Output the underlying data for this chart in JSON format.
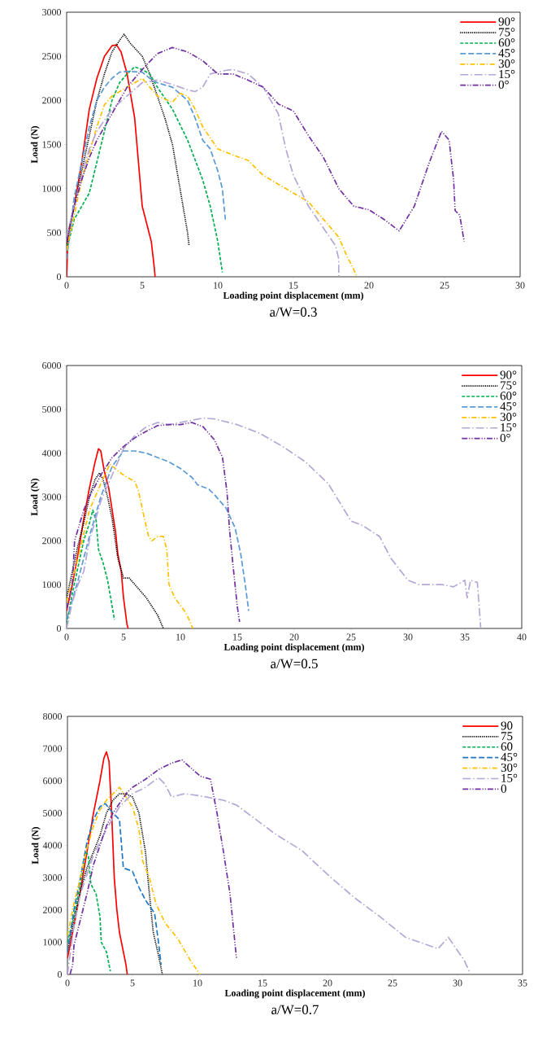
{
  "chart_data": [
    {
      "type": "line",
      "title": "a/W=0.3",
      "xlabel": "Loading point displacement (mm)",
      "ylabel": "Load (N)",
      "xlim": [
        0,
        30
      ],
      "ylim": [
        0,
        3000
      ],
      "xticks": [
        0,
        5,
        10,
        15,
        20,
        25,
        30
      ],
      "yticks": [
        0,
        500,
        1000,
        1500,
        2000,
        2500,
        3000
      ],
      "legend": "top right",
      "grid": false,
      "series": [
        {
          "name": "90°",
          "color": "#ff0000",
          "line_style": "solid",
          "x": [
            0,
            0.1,
            0.5,
            1,
            1.5,
            2,
            2.5,
            3,
            3.3,
            3.6,
            4,
            4.5,
            4.8,
            5,
            5.3,
            5.6,
            5.8,
            5.85
          ],
          "values": [
            0,
            500,
            800,
            1300,
            1900,
            2250,
            2500,
            2620,
            2630,
            2550,
            2300,
            1800,
            1200,
            800,
            600,
            400,
            100,
            0
          ]
        },
        {
          "name": "75°",
          "color": "#000000",
          "line_style": "dotted",
          "x": [
            0,
            0.5,
            1,
            1.5,
            2,
            2.5,
            3,
            3.5,
            3.8,
            4.2,
            5,
            5.5,
            6,
            6.5,
            7,
            7.5,
            8,
            8.1
          ],
          "values": [
            350,
            800,
            1200,
            1600,
            2000,
            2300,
            2550,
            2680,
            2750,
            2650,
            2500,
            2300,
            2050,
            1800,
            1500,
            1000,
            500,
            350
          ]
        },
        {
          "name": "60°",
          "color": "#00b050",
          "line_style": "dashed",
          "x": [
            0,
            0.5,
            1,
            1.5,
            2,
            2.5,
            3,
            3.5,
            4,
            4.5,
            5,
            5.5,
            6,
            7,
            8,
            9,
            9.5,
            10,
            10.3
          ],
          "values": [
            300,
            650,
            800,
            950,
            1300,
            1650,
            2000,
            2200,
            2300,
            2380,
            2350,
            2300,
            2150,
            1900,
            1550,
            1100,
            800,
            400,
            50
          ]
        },
        {
          "name": "45°",
          "color": "#5b9bd5",
          "line_style": "long dashed",
          "x": [
            0,
            0.5,
            1,
            1.5,
            2,
            2.5,
            3,
            3.5,
            4,
            5,
            5.5,
            6,
            7,
            8,
            8.5,
            9,
            9.5,
            10,
            10.3,
            10.5
          ],
          "values": [
            200,
            900,
            1300,
            1700,
            2000,
            2150,
            2250,
            2320,
            2330,
            2320,
            2250,
            2200,
            2150,
            2000,
            1800,
            1550,
            1450,
            1200,
            1000,
            650
          ]
        },
        {
          "name": "30°",
          "color": "#ffc000",
          "line_style": "dashdot",
          "x": [
            0,
            0.5,
            1,
            1.5,
            2,
            2.5,
            3,
            4,
            5,
            5.5,
            6,
            7,
            7.5,
            8,
            8.5,
            9,
            10,
            11,
            12,
            13,
            14,
            15,
            16,
            17,
            18,
            18.5,
            19,
            19.2
          ],
          "values": [
            300,
            700,
            1100,
            1400,
            1700,
            1950,
            2050,
            2150,
            2250,
            2150,
            2050,
            1980,
            2080,
            2050,
            1900,
            1700,
            1450,
            1380,
            1320,
            1150,
            1050,
            950,
            850,
            650,
            450,
            250,
            80,
            0
          ]
        },
        {
          "name": "15°",
          "color": "#b4a7d6",
          "line_style": "long dashdot",
          "x": [
            0,
            0.5,
            1,
            1.5,
            2,
            3,
            4,
            5,
            6,
            7,
            8,
            8.5,
            9,
            9.5,
            10.5,
            11,
            12,
            13,
            14,
            14.5,
            15,
            16,
            17,
            17.8,
            18,
            18
          ],
          "values": [
            450,
            800,
            1150,
            1450,
            1650,
            1900,
            2050,
            2200,
            2230,
            2180,
            2120,
            2100,
            2150,
            2300,
            2340,
            2350,
            2300,
            2150,
            1850,
            1450,
            1150,
            800,
            550,
            350,
            200,
            0
          ]
        },
        {
          "name": "0°",
          "color": "#7030a0",
          "line_style": "dashdotdot",
          "x": [
            0,
            0.5,
            1,
            1.5,
            2,
            3,
            4,
            5,
            6,
            7,
            8,
            9,
            10,
            11,
            12,
            13,
            14,
            15,
            16,
            17,
            18,
            19,
            20,
            21,
            22,
            23,
            24,
            24.8,
            25.3,
            25.6,
            25.7,
            26,
            26.3
          ],
          "values": [
            400,
            800,
            1100,
            1350,
            1550,
            1850,
            2150,
            2350,
            2530,
            2600,
            2550,
            2450,
            2300,
            2300,
            2230,
            2150,
            1960,
            1880,
            1600,
            1350,
            1000,
            800,
            760,
            650,
            520,
            800,
            1300,
            1650,
            1550,
            1100,
            750,
            700,
            400
          ]
        }
      ]
    },
    {
      "type": "line",
      "title": "a/W=0.5",
      "xlabel": "Loading point displacement (mm)",
      "ylabel": "Load (N)",
      "xlim": [
        0,
        40
      ],
      "ylim": [
        0,
        6000
      ],
      "xticks": [
        0,
        5,
        10,
        15,
        20,
        25,
        30,
        35,
        40
      ],
      "yticks": [
        0,
        1000,
        2000,
        3000,
        4000,
        5000,
        6000
      ],
      "legend": "top right",
      "grid": false,
      "series": [
        {
          "name": "90°",
          "color": "#ff0000",
          "line_style": "solid",
          "x": [
            0,
            0.5,
            1,
            1.5,
            2,
            2.5,
            2.8,
            3,
            3.3,
            3.7,
            4,
            4.3,
            4.5,
            4.8,
            5,
            5.3,
            5.4
          ],
          "values": [
            400,
            1000,
            1700,
            2500,
            3200,
            3800,
            4100,
            4050,
            3600,
            3200,
            2700,
            2200,
            1700,
            1300,
            700,
            100,
            0
          ]
        },
        {
          "name": "75°",
          "color": "#000000",
          "line_style": "dotted",
          "x": [
            0,
            0.5,
            1,
            1.5,
            2,
            2.5,
            2.9,
            3.2,
            3.6,
            4,
            4.5,
            5,
            5.5,
            6,
            7,
            8,
            8.5
          ],
          "values": [
            700,
            1300,
            1900,
            2400,
            3000,
            3400,
            3550,
            3400,
            3000,
            2500,
            1600,
            1150,
            1150,
            1000,
            700,
            300,
            0
          ]
        },
        {
          "name": "60°",
          "color": "#00b050",
          "line_style": "dashed",
          "x": [
            0,
            0.5,
            1,
            1.5,
            2,
            2.3,
            2.6,
            2.8,
            3.2,
            3.6,
            4,
            4.2
          ],
          "values": [
            100,
            800,
            1400,
            2000,
            2400,
            2700,
            2450,
            1800,
            1500,
            1100,
            500,
            200
          ]
        },
        {
          "name": "45°",
          "color": "#5b9bd5",
          "line_style": "long dashed",
          "x": [
            0,
            1,
            2,
            3,
            4,
            5,
            6,
            7,
            8,
            9,
            10,
            11,
            11.5,
            12.5,
            13,
            14,
            14.8,
            15.3,
            15.7,
            16
          ],
          "values": [
            200,
            1100,
            2100,
            3000,
            3700,
            4050,
            4050,
            4000,
            3900,
            3800,
            3650,
            3450,
            3280,
            3180,
            3050,
            2750,
            2300,
            1700,
            1000,
            400
          ]
        },
        {
          "name": "30°",
          "color": "#ffc000",
          "line_style": "dashdot",
          "x": [
            0,
            1,
            2,
            3,
            3.8,
            4.5,
            5,
            6,
            6.3,
            6.8,
            7.2,
            7.5,
            8,
            8.5,
            8.8,
            9,
            9.5,
            10.5,
            11.1
          ],
          "values": [
            600,
            1600,
            2700,
            3300,
            3750,
            3600,
            3500,
            3350,
            3150,
            2550,
            2100,
            2000,
            2100,
            2100,
            1800,
            1000,
            700,
            350,
            0
          ]
        },
        {
          "name": "15°",
          "color": "#b4a7d6",
          "line_style": "long dashdot",
          "x": [
            0,
            0.5,
            1,
            1.5,
            2,
            3,
            4,
            5,
            6,
            7,
            8,
            9,
            10,
            11,
            12,
            13,
            15,
            17,
            19,
            21,
            23,
            25,
            26,
            27.5,
            28.5,
            30,
            31,
            33,
            34,
            35,
            35.2,
            35.5,
            36.1,
            36.4
          ],
          "values": [
            0,
            600,
            1000,
            1300,
            2000,
            2900,
            3500,
            4100,
            4400,
            4600,
            4700,
            4650,
            4700,
            4750,
            4800,
            4780,
            4650,
            4450,
            4150,
            3800,
            3300,
            2450,
            2350,
            2100,
            1600,
            1100,
            1000,
            1000,
            950,
            1100,
            700,
            1100,
            1050,
            0
          ]
        },
        {
          "name": "0°",
          "color": "#7030a0",
          "line_style": "dashdotdot",
          "x": [
            0,
            0.5,
            0.7,
            1.5,
            2,
            3,
            4,
            5,
            6,
            7,
            8,
            9,
            10,
            11,
            12,
            13,
            13.7,
            14.1,
            14.3,
            14.6,
            15,
            15.2
          ],
          "values": [
            450,
            1000,
            2000,
            2700,
            3000,
            3500,
            3900,
            4150,
            4350,
            4500,
            4630,
            4650,
            4650,
            4700,
            4600,
            4300,
            3900,
            3100,
            2300,
            1500,
            500,
            150
          ]
        }
      ]
    },
    {
      "type": "line",
      "title": "a/W=0.7",
      "xlabel": "Loading point displacement (mm)",
      "ylabel": "Load (N)",
      "xlim": [
        0,
        35
      ],
      "ylim": [
        0,
        8000
      ],
      "xticks": [
        0,
        5,
        10,
        15,
        20,
        25,
        30,
        35
      ],
      "yticks": [
        0,
        1000,
        2000,
        3000,
        4000,
        5000,
        6000,
        7000,
        8000
      ],
      "legend": "top right",
      "grid": false,
      "series": [
        {
          "name": "90",
          "color": "#ff0000",
          "line_style": "solid",
          "x": [
            0,
            0.5,
            1,
            1.5,
            2,
            2.5,
            2.8,
            3,
            3.2,
            3.4,
            3.6,
            3.8,
            4,
            4.3,
            4.5,
            4.6
          ],
          "values": [
            500,
            1500,
            2600,
            3800,
            5000,
            6000,
            6700,
            6900,
            6600,
            5000,
            3000,
            2000,
            1300,
            700,
            300,
            0
          ]
        },
        {
          "name": "75",
          "color": "#000000",
          "line_style": "dotted",
          "x": [
            0,
            0.5,
            1,
            1.5,
            2,
            2.5,
            3,
            3.5,
            4,
            4.5,
            5,
            5.5,
            6,
            6.3,
            6.6,
            7,
            7.3
          ],
          "values": [
            700,
            1700,
            2600,
            3300,
            3800,
            4300,
            5000,
            5400,
            5600,
            5600,
            5500,
            5000,
            3800,
            2500,
            1300,
            600,
            0
          ]
        },
        {
          "name": "60",
          "color": "#00b050",
          "line_style": "dashed",
          "x": [
            0,
            0.5,
            1,
            1.4,
            1.6,
            1.8,
            2.2,
            2.5,
            2.6,
            3,
            3.3
          ],
          "values": [
            1000,
            1800,
            2800,
            3800,
            3700,
            2800,
            2500,
            1800,
            1000,
            700,
            100
          ]
        },
        {
          "name": "45°",
          "color": "#1f77c4",
          "line_style": "long dashed",
          "x": [
            0,
            0.5,
            1,
            1.5,
            2,
            2.5,
            2.9,
            3.5,
            4,
            4.3,
            5,
            5.5,
            6,
            6.7,
            7,
            7.2
          ],
          "values": [
            700,
            2000,
            3000,
            4100,
            4800,
            5200,
            5300,
            5000,
            4800,
            3300,
            3200,
            2700,
            2300,
            1900,
            1000,
            300
          ]
        },
        {
          "name": "30°",
          "color": "#ffc000",
          "line_style": "dashdot",
          "x": [
            0,
            0.5,
            1,
            1.5,
            2,
            2.5,
            3,
            4,
            4.5,
            5,
            5.5,
            5.8,
            6.3,
            6.8,
            7.5,
            8.5,
            9.5,
            10.2
          ],
          "values": [
            1200,
            2200,
            3000,
            3900,
            4600,
            5100,
            5400,
            5800,
            5500,
            5200,
            4500,
            3500,
            3000,
            2200,
            1600,
            1100,
            400,
            0
          ]
        },
        {
          "name": "15°",
          "color": "#b4a7d6",
          "line_style": "long dashdot",
          "x": [
            0,
            0.5,
            1,
            2,
            3,
            4,
            5,
            6,
            7,
            7.5,
            8,
            9,
            10,
            12,
            13,
            14,
            16,
            18,
            20,
            22,
            24,
            26,
            28.5,
            29.3,
            29.8,
            30.5,
            31
          ],
          "values": [
            0,
            1500,
            2500,
            3700,
            4500,
            5200,
            5600,
            5800,
            6100,
            5900,
            5500,
            5600,
            5550,
            5400,
            5250,
            4950,
            4350,
            3850,
            3100,
            2400,
            1800,
            1150,
            800,
            1150,
            850,
            450,
            0
          ]
        },
        {
          "name": "0",
          "color": "#7030a0",
          "line_style": "dashdotdot",
          "x": [
            0.2,
            0.4,
            0.5,
            1,
            1.5,
            2,
            2.5,
            3,
            3.5,
            4,
            4.6,
            5,
            6,
            7,
            8,
            8.8,
            9.5,
            10.2,
            11,
            11.5,
            12,
            12.5,
            13
          ],
          "values": [
            0,
            300,
            900,
            1700,
            2500,
            3400,
            4000,
            4600,
            5000,
            5300,
            5650,
            5800,
            6050,
            6350,
            6550,
            6650,
            6400,
            6150,
            6050,
            5000,
            3800,
            2500,
            500
          ]
        }
      ]
    }
  ]
}
